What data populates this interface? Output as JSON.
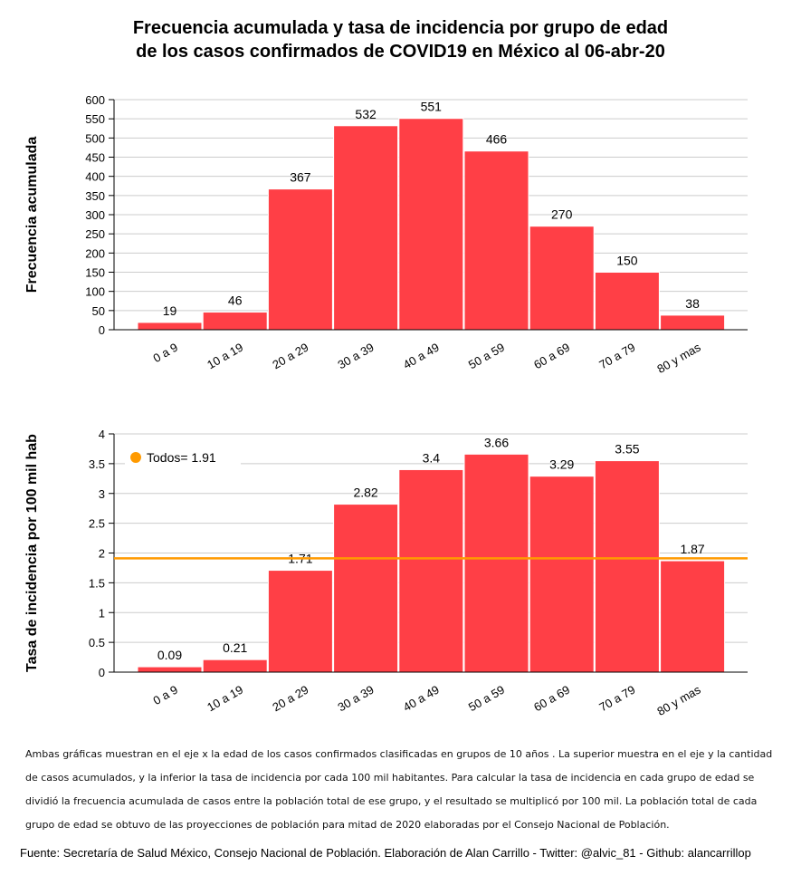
{
  "title": {
    "line1": "Frecuencia acumulada y tasa de incidencia por grupo de edad",
    "line2": "de los casos confirmados de COVID19 en México al 06-abr-20"
  },
  "colors": {
    "bar": "#ff3f46",
    "reference_line": "#ff9a00",
    "grid": "#cccccc",
    "axis": "#000000"
  },
  "chart_data": [
    {
      "type": "bar",
      "ylabel": "Frecuencia acumulada",
      "xlabel": "",
      "categories": [
        "0 a 9",
        "10 a 19",
        "20 a 29",
        "30 a 39",
        "40 a 49",
        "50 a 59",
        "60 a 69",
        "70 a 79",
        "80 y mas"
      ],
      "values": [
        19,
        46,
        367,
        532,
        551,
        466,
        270,
        150,
        38
      ],
      "value_labels": [
        "19",
        "46",
        "367",
        "532",
        "551",
        "466",
        "270",
        "150",
        "38"
      ],
      "ylim": [
        0,
        600
      ],
      "yticks": [
        0,
        50,
        100,
        150,
        200,
        250,
        300,
        350,
        400,
        450,
        500,
        550,
        600
      ],
      "grid": true
    },
    {
      "type": "bar",
      "ylabel": "Tasa de incidencia por 100 mil hab",
      "xlabel": "",
      "categories": [
        "0 a 9",
        "10 a 19",
        "20 a 29",
        "30 a 39",
        "40 a 49",
        "50 a 59",
        "60 a 69",
        "70 a 79",
        "80 y mas"
      ],
      "values": [
        0.09,
        0.21,
        1.71,
        2.82,
        3.4,
        3.66,
        3.29,
        3.55,
        1.87
      ],
      "value_labels": [
        "0.09",
        "0.21",
        "1.71",
        "2.82",
        "3.4",
        "3.66",
        "3.29",
        "3.55",
        "1.87"
      ],
      "ylim": [
        0,
        4
      ],
      "yticks": [
        0,
        0.5,
        1,
        1.5,
        2,
        2.5,
        3,
        3.5,
        4
      ],
      "ytick_labels": [
        "0",
        "0.5",
        "1",
        "1.5",
        "2",
        "2.5",
        "3",
        "3.5",
        "4"
      ],
      "grid": true,
      "reference_line": {
        "value": 1.91,
        "label": "Todos= 1.91"
      },
      "legend": "top-left"
    }
  ],
  "note": "Ambas gráficas muestran en el eje x la edad de los casos confirmados clasificadas en grupos de 10 años . La superior muestra en el eje y la cantidad de casos acumulados, y la inferior la tasa de incidencia por cada 100 mil habitantes. Para calcular la tasa de incidencia en cada grupo de edad se dividió la frecuencia acumulada de casos entre la población total de ese grupo, y el resultado se multiplicó por 100 mil. La población total de cada grupo de edad se obtuvo de las proyecciones de población para mitad de 2020 elaboradas por el Consejo Nacional de Población.",
  "source": "Fuente: Secretaría de Salud México, Consejo Nacional de Población. Elaboración de Alan Carrillo - Twitter: @alvic_81 - Github: alancarrillop"
}
